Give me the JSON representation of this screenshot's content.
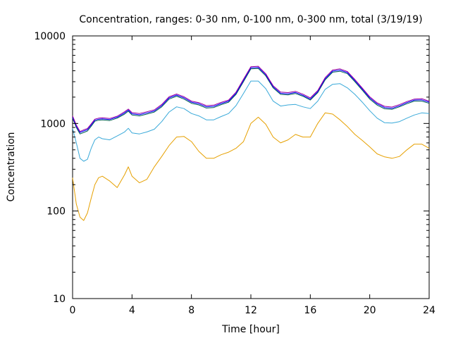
{
  "chart_data": {
    "type": "line",
    "title": "Concentration, ranges: 0-30 nm, 0-100 nm, 0-300 nm, total (3/19/19)",
    "xlabel": "Time [hour]",
    "ylabel": "Concentration",
    "xlim": [
      0,
      24
    ],
    "ylim": [
      10,
      10000
    ],
    "yscale": "log",
    "xticks": [
      "0",
      "4",
      "8",
      "12",
      "16",
      "20",
      "24"
    ],
    "yticks": [
      "10",
      "100",
      "1000",
      "10000"
    ],
    "grid": false,
    "legend": "none",
    "x": [
      0,
      0.25,
      0.5,
      0.75,
      1,
      1.25,
      1.5,
      1.75,
      2,
      2.5,
      3,
      3.5,
      3.75,
      4,
      4.5,
      5,
      5.5,
      6,
      6.5,
      7,
      7.5,
      8,
      8.5,
      9,
      9.5,
      10,
      10.5,
      11,
      11.5,
      12,
      12.5,
      13,
      13.5,
      14,
      14.5,
      15,
      15.5,
      16,
      16.5,
      17,
      17.5,
      18,
      18.5,
      19,
      19.5,
      20,
      20.5,
      21,
      21.5,
      22,
      22.5,
      23,
      23.5,
      24
    ],
    "series": [
      {
        "color": "#e6a000",
        "values": [
          240,
          120,
          85,
          78,
          95,
          140,
          200,
          240,
          250,
          220,
          185,
          260,
          320,
          250,
          210,
          230,
          320,
          420,
          560,
          700,
          710,
          620,
          480,
          400,
          400,
          440,
          470,
          520,
          620,
          1000,
          1180,
          980,
          700,
          600,
          650,
          750,
          700,
          700,
          1000,
          1320,
          1280,
          1100,
          920,
          750,
          640,
          540,
          450,
          415,
          400,
          420,
          500,
          580,
          580,
          520
        ]
      },
      {
        "color": "#39a9d9",
        "values": [
          880,
          600,
          400,
          370,
          390,
          520,
          650,
          700,
          670,
          650,
          720,
          800,
          880,
          780,
          760,
          800,
          860,
          1050,
          1350,
          1550,
          1480,
          1300,
          1220,
          1100,
          1100,
          1200,
          1300,
          1600,
          2200,
          3050,
          3050,
          2500,
          1800,
          1580,
          1630,
          1650,
          1550,
          1480,
          1800,
          2450,
          2800,
          2850,
          2550,
          2150,
          1750,
          1400,
          1150,
          1020,
          1010,
          1050,
          1150,
          1250,
          1320,
          1300
        ]
      },
      {
        "color": "#005f4f",
        "values": [
          1150,
          900,
          760,
          790,
          820,
          930,
          1060,
          1090,
          1100,
          1080,
          1150,
          1280,
          1380,
          1250,
          1220,
          1280,
          1350,
          1550,
          1900,
          2050,
          1900,
          1700,
          1630,
          1500,
          1520,
          1640,
          1750,
          2150,
          3000,
          4200,
          4250,
          3500,
          2550,
          2150,
          2120,
          2200,
          2050,
          1850,
          2250,
          3150,
          3850,
          3950,
          3700,
          3000,
          2400,
          1900,
          1620,
          1470,
          1450,
          1550,
          1680,
          1800,
          1800,
          1700
        ]
      },
      {
        "color": "#0000ff",
        "values": [
          1180,
          930,
          790,
          820,
          850,
          960,
          1090,
          1120,
          1130,
          1110,
          1180,
          1320,
          1420,
          1290,
          1260,
          1320,
          1390,
          1600,
          1960,
          2110,
          1960,
          1750,
          1680,
          1550,
          1570,
          1690,
          1800,
          2210,
          3100,
          4320,
          4370,
          3600,
          2620,
          2210,
          2180,
          2260,
          2100,
          1900,
          2310,
          3240,
          3960,
          4070,
          3810,
          3090,
          2470,
          1960,
          1670,
          1520,
          1490,
          1590,
          1730,
          1850,
          1860,
          1750
        ]
      },
      {
        "color": "#9d009d",
        "values": [
          1220,
          960,
          810,
          845,
          875,
          990,
          1120,
          1150,
          1160,
          1140,
          1210,
          1360,
          1460,
          1330,
          1300,
          1360,
          1430,
          1650,
          2020,
          2170,
          2020,
          1800,
          1730,
          1600,
          1620,
          1740,
          1850,
          2280,
          3200,
          4450,
          4500,
          3700,
          2700,
          2280,
          2250,
          2330,
          2160,
          1960,
          2380,
          3340,
          4080,
          4200,
          3920,
          3180,
          2540,
          2020,
          1720,
          1570,
          1540,
          1640,
          1780,
          1900,
          1920,
          1800
        ]
      }
    ]
  }
}
